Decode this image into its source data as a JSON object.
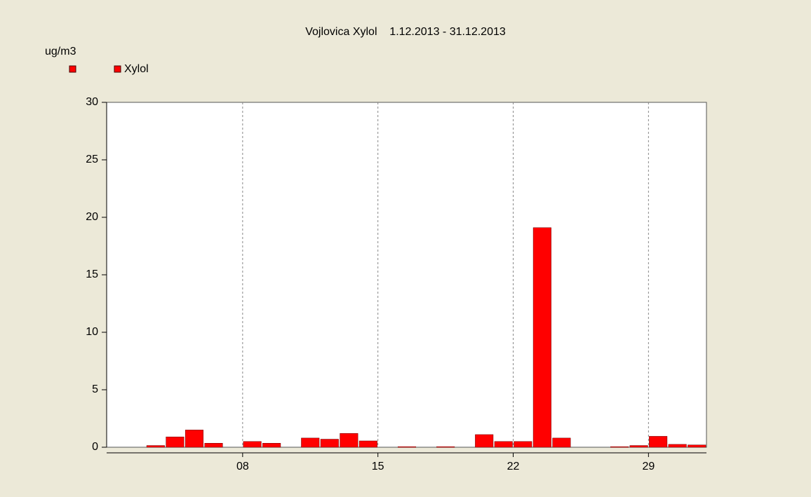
{
  "chart_data": {
    "type": "bar",
    "title": "Vojlovica Xylol    1.12.2013 - 31.12.2013",
    "y_label": "ug/m3",
    "x": [
      1,
      2,
      3,
      4,
      5,
      6,
      7,
      8,
      9,
      10,
      11,
      12,
      13,
      14,
      15,
      16,
      17,
      18,
      19,
      20,
      21,
      22,
      23,
      24,
      25,
      26,
      27,
      28,
      29,
      30,
      31
    ],
    "series": [
      {
        "name": "Xylol",
        "color": "#ff0000",
        "values": [
          null,
          null,
          0.15,
          0.9,
          1.5,
          0.35,
          null,
          0.5,
          0.35,
          null,
          0.8,
          0.7,
          1.2,
          0.55,
          null,
          0.05,
          null,
          0.05,
          null,
          1.1,
          0.5,
          0.5,
          19.1,
          0.8,
          null,
          null,
          0.05,
          0.15,
          0.95,
          0.25,
          0.2
        ]
      }
    ],
    "xlim": [
      1,
      32
    ],
    "xticks": [
      {
        "value": 8,
        "label": "08"
      },
      15,
      22,
      29
    ],
    "ylim": [
      0,
      30
    ],
    "yticks": [
      0,
      5,
      10,
      15,
      20,
      25,
      30
    ],
    "grid": true
  }
}
